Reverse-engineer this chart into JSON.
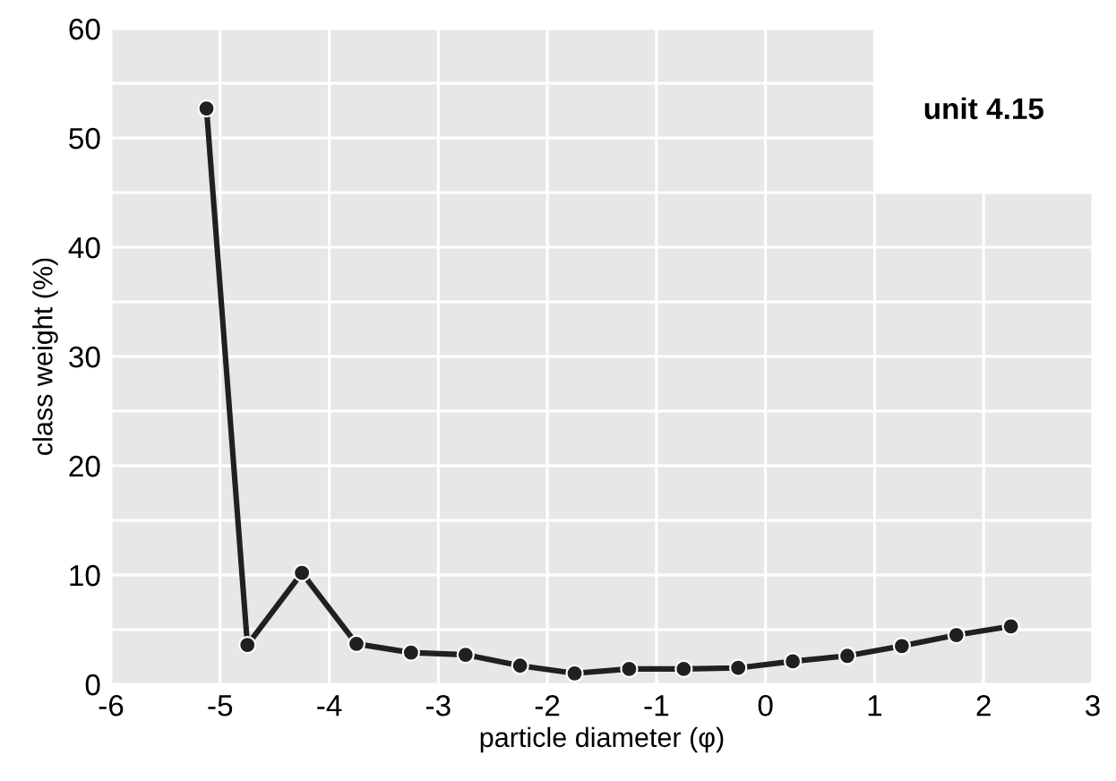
{
  "chart_data": {
    "type": "line",
    "xlabel": "particle diameter (φ)",
    "ylabel": "class weight (%)",
    "annotations": [
      "unit 4.15"
    ],
    "x": [
      -5.125,
      -4.75,
      -4.25,
      -3.75,
      -3.25,
      -2.75,
      -2.25,
      -1.75,
      -1.25,
      -0.75,
      -0.25,
      0.25,
      0.75,
      1.25,
      1.75,
      2.25
    ],
    "series": [
      {
        "color": "#231f20",
        "values": [
          52.7,
          3.6,
          10.2,
          3.7,
          2.9,
          2.7,
          1.7,
          1.0,
          1.4,
          1.4,
          1.5,
          2.1,
          2.6,
          3.5,
          4.5,
          5.3
        ]
      }
    ],
    "xlim": [
      -6,
      3
    ],
    "xticks": [
      -6,
      -5,
      -4,
      -3,
      -2,
      -1,
      0,
      1,
      2,
      3
    ],
    "ylim": [
      0,
      60
    ],
    "yticks": [
      0,
      {
        "value": 5,
        "label": null
      },
      10,
      {
        "value": 15,
        "label": null
      },
      20,
      {
        "value": 25,
        "label": null
      },
      30,
      {
        "value": 35,
        "label": null
      },
      40,
      {
        "value": 45,
        "label": null
      },
      50,
      {
        "value": 55,
        "label": null
      },
      60
    ],
    "grid": true,
    "marker": "circle",
    "line_style": "solid"
  }
}
